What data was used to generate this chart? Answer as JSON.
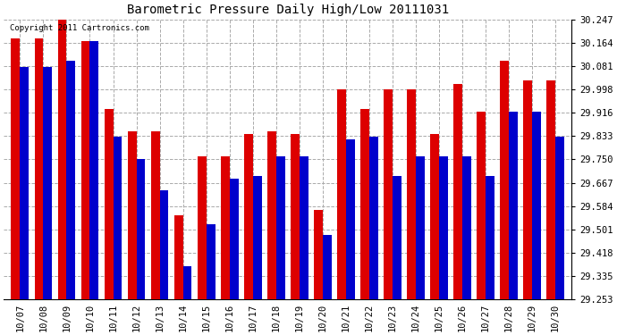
{
  "title": "Barometric Pressure Daily High/Low 20111031",
  "copyright": "Copyright 2011 Cartronics.com",
  "dates": [
    "10/07",
    "10/08",
    "10/09",
    "10/10",
    "10/11",
    "10/12",
    "10/13",
    "10/14",
    "10/15",
    "10/16",
    "10/17",
    "10/18",
    "10/19",
    "10/20",
    "10/21",
    "10/22",
    "10/23",
    "10/24",
    "10/25",
    "10/26",
    "10/27",
    "10/28",
    "10/29",
    "10/30"
  ],
  "highs": [
    30.18,
    30.18,
    30.25,
    30.17,
    29.93,
    29.85,
    29.85,
    29.55,
    29.76,
    29.76,
    29.84,
    29.85,
    29.84,
    29.57,
    30.0,
    29.93,
    30.0,
    30.0,
    29.84,
    30.02,
    29.92,
    30.1,
    30.03,
    30.03
  ],
  "lows": [
    30.08,
    30.08,
    30.1,
    30.17,
    29.83,
    29.75,
    29.64,
    29.37,
    29.52,
    29.68,
    29.69,
    29.76,
    29.76,
    29.48,
    29.82,
    29.83,
    29.69,
    29.76,
    29.76,
    29.76,
    29.69,
    29.92,
    29.92,
    29.83
  ],
  "high_color": "#dd0000",
  "low_color": "#0000cc",
  "bg_color": "#ffffff",
  "grid_color": "#aaaaaa",
  "ymin": 29.253,
  "ymax": 30.247,
  "yticks": [
    29.253,
    29.335,
    29.418,
    29.501,
    29.584,
    29.667,
    29.75,
    29.833,
    29.916,
    29.998,
    30.081,
    30.164,
    30.247
  ]
}
